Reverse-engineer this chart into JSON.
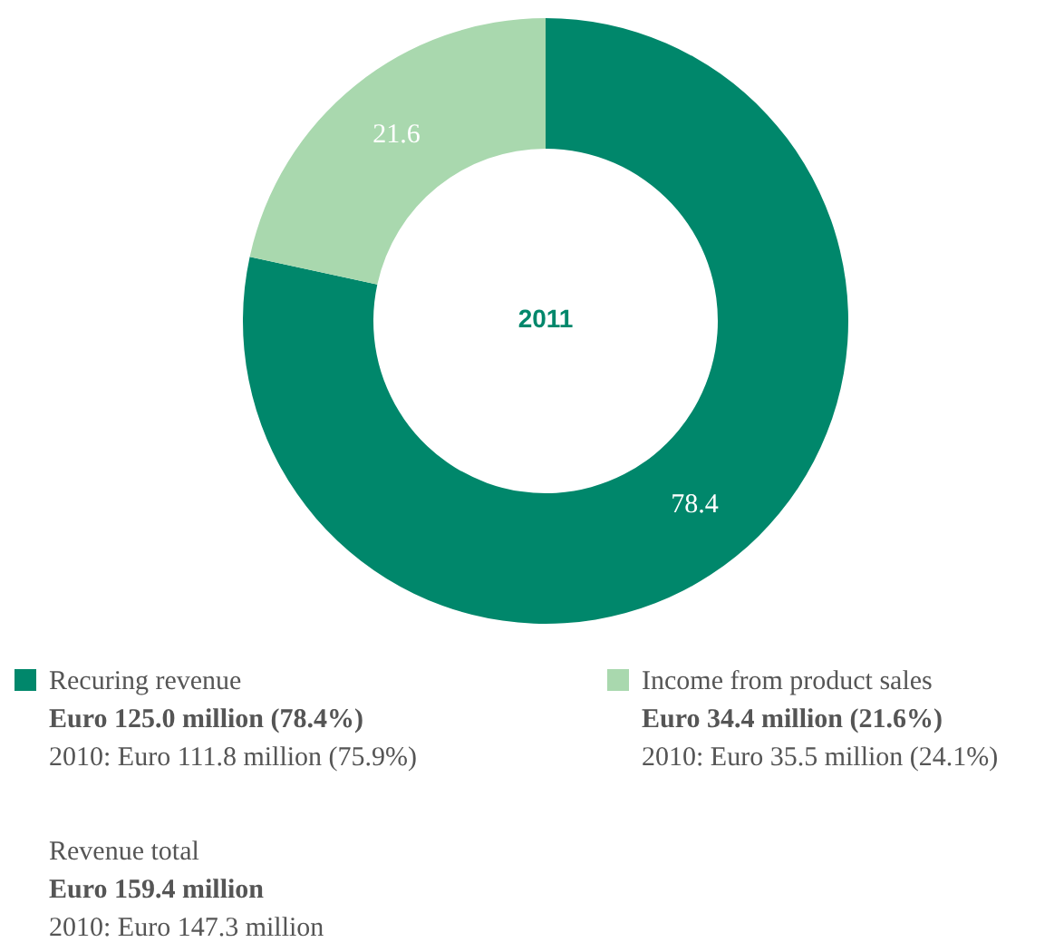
{
  "chart_data": {
    "type": "donut",
    "title": "2011",
    "categories": [
      "Recuring revenue",
      "Income from product sales"
    ],
    "values": [
      78.4,
      21.6
    ],
    "colors": [
      "#00876b",
      "#a9d8ae"
    ],
    "data_labels": true,
    "legend": "bottom",
    "annotations": [
      "Euro 125.0 million (78.4%)",
      "2010: Euro 111.8 million (75.9%)",
      "Euro 34.4 million (21.6%)",
      "2010: Euro 35.5 million (24.1%)",
      "Revenue total",
      "Euro 159.4 million",
      "2010: Euro 147.3 million"
    ]
  }
}
